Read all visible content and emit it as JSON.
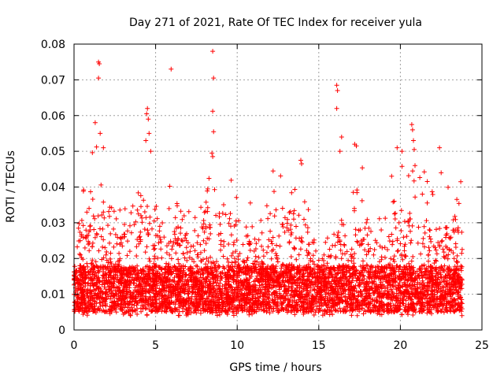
{
  "chart_data": {
    "type": "scatter",
    "title": "Day 271 of 2021, Rate Of TEC Index for receiver yula",
    "xlabel": "GPS time / hours",
    "ylabel": "ROTI / TECUs",
    "xlim": [
      0,
      25
    ],
    "ylim": [
      0,
      0.08
    ],
    "xticks": [
      0,
      5,
      10,
      15,
      20,
      25
    ],
    "xtick_labels": [
      "0",
      "5",
      "10",
      "15",
      "20",
      "25"
    ],
    "yticks": [
      0,
      0.01,
      0.02,
      0.03,
      0.04,
      0.05,
      0.06,
      0.07,
      0.08
    ],
    "ytick_labels": [
      "0",
      "0.01",
      "0.02",
      "0.03",
      "0.04",
      "0.05",
      "0.06",
      "0.07",
      "0.08"
    ],
    "grid": true,
    "marker": "+",
    "color": "#ff0000",
    "time_range_hours": [
      0.0,
      23.8
    ],
    "envelope": {
      "hours": [
        0,
        1,
        2,
        3,
        4,
        5,
        6,
        7,
        8,
        9,
        10,
        11,
        12,
        13,
        14,
        15,
        16,
        17,
        18,
        19,
        20,
        21,
        22,
        23,
        23.8
      ],
      "upper": [
        0.026,
        0.044,
        0.042,
        0.036,
        0.043,
        0.04,
        0.036,
        0.034,
        0.04,
        0.038,
        0.033,
        0.031,
        0.035,
        0.041,
        0.036,
        0.024,
        0.036,
        0.04,
        0.037,
        0.033,
        0.04,
        0.043,
        0.038,
        0.034,
        0.04
      ]
    },
    "notable_points": [
      {
        "x": 1.5,
        "y": 0.075
      },
      {
        "x": 1.55,
        "y": 0.0745
      },
      {
        "x": 1.5,
        "y": 0.0705
      },
      {
        "x": 1.3,
        "y": 0.058
      },
      {
        "x": 1.6,
        "y": 0.055
      },
      {
        "x": 1.8,
        "y": 0.051
      },
      {
        "x": 4.5,
        "y": 0.062
      },
      {
        "x": 4.45,
        "y": 0.0605
      },
      {
        "x": 4.55,
        "y": 0.059
      },
      {
        "x": 4.6,
        "y": 0.055
      },
      {
        "x": 4.4,
        "y": 0.053
      },
      {
        "x": 4.7,
        "y": 0.05
      },
      {
        "x": 5.95,
        "y": 0.073
      },
      {
        "x": 8.5,
        "y": 0.078
      },
      {
        "x": 8.55,
        "y": 0.0705
      },
      {
        "x": 8.5,
        "y": 0.0612
      },
      {
        "x": 8.55,
        "y": 0.0555
      },
      {
        "x": 8.45,
        "y": 0.0495
      },
      {
        "x": 8.5,
        "y": 0.0485
      },
      {
        "x": 12.2,
        "y": 0.0445
      },
      {
        "x": 13.9,
        "y": 0.0475
      },
      {
        "x": 13.95,
        "y": 0.0465
      },
      {
        "x": 16.1,
        "y": 0.0685
      },
      {
        "x": 16.15,
        "y": 0.067
      },
      {
        "x": 16.1,
        "y": 0.062
      },
      {
        "x": 16.4,
        "y": 0.054
      },
      {
        "x": 16.3,
        "y": 0.05
      },
      {
        "x": 17.2,
        "y": 0.052
      },
      {
        "x": 17.3,
        "y": 0.0515
      },
      {
        "x": 19.8,
        "y": 0.051
      },
      {
        "x": 20.1,
        "y": 0.05
      },
      {
        "x": 20.7,
        "y": 0.0575
      },
      {
        "x": 20.75,
        "y": 0.056
      },
      {
        "x": 20.8,
        "y": 0.053
      },
      {
        "x": 20.85,
        "y": 0.0505
      },
      {
        "x": 20.9,
        "y": 0.046
      },
      {
        "x": 22.4,
        "y": 0.051
      },
      {
        "x": 22.5,
        "y": 0.044
      },
      {
        "x": 23.7,
        "y": 0.0415
      }
    ]
  }
}
